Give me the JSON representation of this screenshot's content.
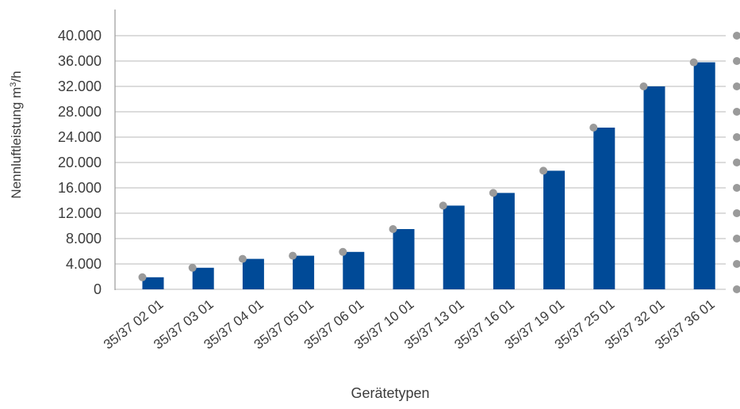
{
  "chart_data": {
    "type": "bar",
    "xlabel": "Gerätetypen",
    "ylabel_prefix": "Nennluftleistung m",
    "ylabel_sup": "3",
    "ylabel_suffix": "/h",
    "ylim": [
      0,
      40000
    ],
    "yticks": [
      0,
      4000,
      8000,
      12000,
      16000,
      20000,
      24000,
      28000,
      32000,
      36000,
      40000
    ],
    "ytick_labels": [
      "0",
      "4.000",
      "8.000",
      "12.000",
      "16.000",
      "20.000",
      "24.000",
      "28.000",
      "32.000",
      "36.000",
      "40.000"
    ],
    "grid": true,
    "categories": [
      "35/37 02 01",
      "35/37 03 01",
      "35/37 04 01",
      "35/37 05 01",
      "35/37 06 01",
      "35/37 10 01",
      "35/37 13 01",
      "35/37 16 01",
      "35/37 19 01",
      "35/37 25 01",
      "35/37 32 01",
      "35/37 36 01"
    ],
    "values": [
      1900,
      3400,
      4800,
      5300,
      5900,
      9500,
      13200,
      15200,
      18700,
      25500,
      32000,
      35800
    ],
    "colors": {
      "bar": "#004a97",
      "grid": "#c8c8c8",
      "axis": "#9a9a9a",
      "marker": "#9a9a9a",
      "text": "#3c3c3c"
    }
  }
}
